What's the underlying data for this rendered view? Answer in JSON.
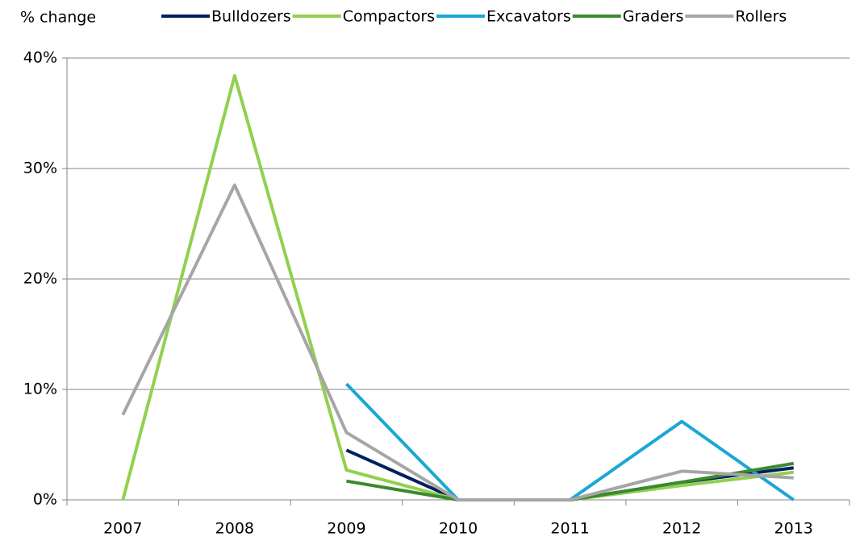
{
  "chart_data": {
    "type": "line",
    "y_axis_label": "% change",
    "categories": [
      "2007",
      "2008",
      "2009",
      "2010",
      "2011",
      "2012",
      "2013"
    ],
    "series": [
      {
        "name": "Bulldozers",
        "color": "#002060",
        "values": [
          null,
          null,
          4.5,
          0,
          0,
          1.6,
          2.9
        ]
      },
      {
        "name": "Compactors",
        "color": "#92d050",
        "values": [
          0,
          38.4,
          2.7,
          0,
          0,
          1.3,
          2.5
        ]
      },
      {
        "name": "Excavators",
        "color": "#1aa7d6",
        "values": [
          null,
          null,
          10.5,
          0,
          0,
          7.1,
          0
        ]
      },
      {
        "name": "Graders",
        "color": "#3a8a2e",
        "values": [
          null,
          null,
          1.7,
          0,
          0,
          1.6,
          3.3
        ]
      },
      {
        "name": "Rollers",
        "color": "#a6a6a6",
        "values": [
          7.7,
          28.5,
          6.1,
          0,
          0,
          2.6,
          2.0
        ]
      }
    ],
    "ylim": [
      0,
      40
    ],
    "yticks": [
      {
        "value": 0,
        "label": "0%"
      },
      {
        "value": 10,
        "label": "10%"
      },
      {
        "value": 20,
        "label": "20%"
      },
      {
        "value": 30,
        "label": "30%"
      },
      {
        "value": 40,
        "label": "40%"
      }
    ],
    "grid": true,
    "legend": "top"
  }
}
